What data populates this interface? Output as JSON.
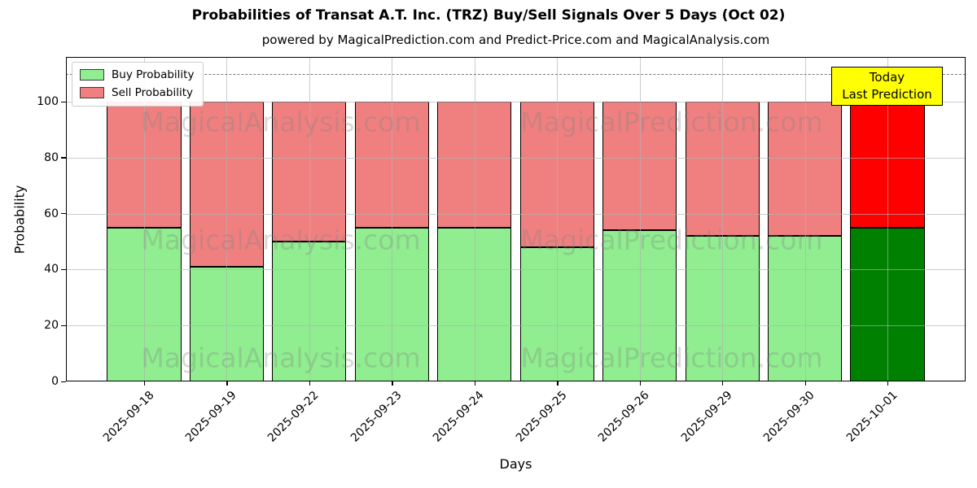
{
  "title": "Probabilities of Transat A.T. Inc. (TRZ) Buy/Sell Signals Over 5 Days (Oct 02)",
  "subtitle": "powered by MagicalPrediction.com and Predict-Price.com and MagicalAnalysis.com",
  "chart_data": {
    "type": "bar",
    "stacked": true,
    "title": "Probabilities of Transat A.T. Inc. (TRZ) Buy/Sell Signals Over 5 Days (Oct 02)",
    "xlabel": "Days",
    "ylabel": "Probability",
    "categories": [
      "2025-09-18",
      "2025-09-19",
      "2025-09-22",
      "2025-09-23",
      "2025-09-24",
      "2025-09-25",
      "2025-09-26",
      "2025-09-29",
      "2025-09-30",
      "2025-10-01"
    ],
    "series": [
      {
        "name": "Buy Probability",
        "color": "#90EE90",
        "values": [
          55,
          41,
          50,
          55,
          55,
          48,
          54,
          52,
          52,
          55
        ]
      },
      {
        "name": "Sell Probability",
        "color": "#F08080",
        "values": [
          45,
          59,
          50,
          45,
          45,
          52,
          46,
          48,
          48,
          45
        ]
      }
    ],
    "today_bar": {
      "index": 9,
      "colors": [
        "#008000",
        "#FF0000"
      ]
    },
    "ylim": [
      0,
      116
    ],
    "yticks": [
      0,
      20,
      40,
      60,
      80,
      100
    ],
    "dashed_line_y": 110,
    "grid": true,
    "legend_position": "upper-left",
    "annotation": {
      "lines": [
        "Today",
        "Last Prediction"
      ],
      "bg_color": "#FFFF00"
    },
    "watermarks": [
      "MagicalAnalysis.com",
      "MagicalPrediction.com"
    ]
  }
}
